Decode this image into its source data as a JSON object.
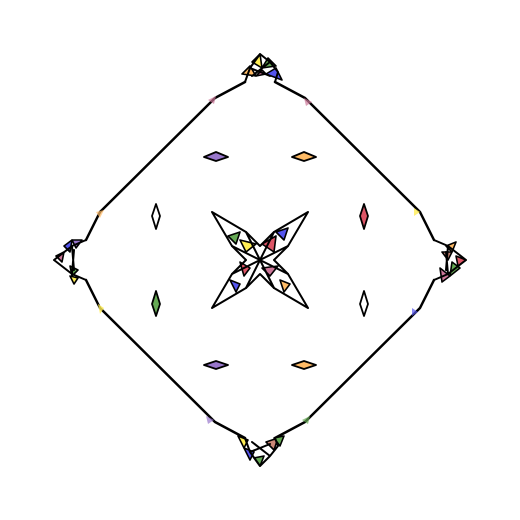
{
  "figure": {
    "background": "#ffffff",
    "stroke_color": "#000000",
    "facet_palette": {
      "yellow": "#ffee55",
      "blue": "#5555ee",
      "green": "#66aa55",
      "pink": "#cc7799",
      "red": "#dd5566",
      "orange": "#ffbb66",
      "purple": "#9977cc",
      "tan": "#cc8877"
    }
  }
}
